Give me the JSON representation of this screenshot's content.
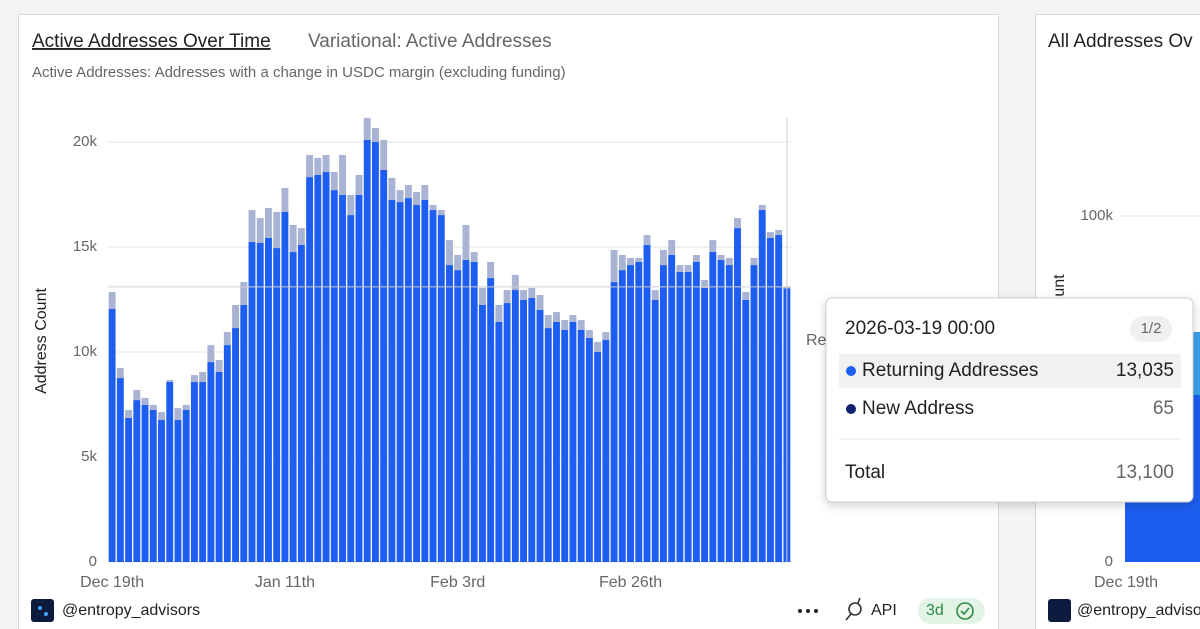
{
  "header": {
    "title": "Active Addresses Over Time",
    "subtitle": "Variational: Active Addresses",
    "description": "Active Addresses: Addresses with a change in USDC margin (excluding funding)"
  },
  "chart_data": {
    "type": "bar",
    "stacked": true,
    "grid": true,
    "ylabel": "Address Count",
    "categories": [
      "Dec 19th",
      null,
      null,
      null,
      null,
      null,
      null,
      null,
      null,
      null,
      null,
      null,
      null,
      null,
      null,
      null,
      null,
      null,
      null,
      null,
      null,
      "Jan 11th",
      null,
      null,
      null,
      null,
      null,
      null,
      null,
      null,
      null,
      null,
      null,
      null,
      null,
      null,
      null,
      null,
      null,
      null,
      null,
      null,
      "Feb 3rd",
      null,
      null,
      null,
      null,
      null,
      null,
      null,
      null,
      null,
      null,
      null,
      null,
      null,
      null,
      null,
      null,
      null,
      null,
      null,
      null,
      "Feb 26th",
      null,
      null,
      null,
      null,
      null,
      null,
      null,
      null,
      null,
      null,
      null,
      null,
      null,
      null,
      null,
      null,
      null,
      null,
      null
    ],
    "series": [
      {
        "name": "Returning Addresses",
        "color": "#1d5ef0",
        "values": [
          12050,
          8760,
          6860,
          7710,
          7480,
          7240,
          6760,
          8570,
          6760,
          7240,
          8570,
          8570,
          9520,
          9050,
          10330,
          11140,
          12240,
          15240,
          15190,
          15430,
          14950,
          16670,
          14760,
          15100,
          18330,
          18430,
          18570,
          17710,
          17480,
          16520,
          17480,
          20100,
          20000,
          18670,
          17240,
          17140,
          17330,
          17000,
          17240,
          16760,
          16520,
          14140,
          13900,
          14380,
          14290,
          12240,
          13520,
          11430,
          12330,
          12950,
          12480,
          12570,
          12000,
          11140,
          11430,
          11050,
          11430,
          11050,
          10670,
          10000,
          10570,
          13330,
          13900,
          14140,
          14290,
          15100,
          12480,
          14140,
          14620,
          13810,
          13810,
          14290,
          13050,
          14760,
          14380,
          14140,
          15900,
          12480,
          14140,
          16760,
          15430,
          15570,
          13035
        ]
      },
      {
        "name": "New Address",
        "color": "#a9b3d4",
        "values": [
          810,
          480,
          380,
          480,
          330,
          240,
          380,
          100,
          570,
          240,
          330,
          480,
          810,
          570,
          620,
          1100,
          1090,
          1520,
          1190,
          1430,
          1720,
          1140,
          1290,
          800,
          1050,
          810,
          810,
          860,
          1900,
          960,
          950,
          1040,
          670,
          1430,
          1050,
          570,
          620,
          620,
          710,
          240,
          240,
          1190,
          720,
          1670,
          470,
          810,
          770,
          810,
          620,
          720,
          470,
          480,
          710,
          620,
          470,
          470,
          330,
          470,
          380,
          480,
          380,
          1530,
          720,
          340,
          190,
          470,
          470,
          720,
          710,
          330,
          330,
          330,
          380,
          570,
          240,
          340,
          480,
          380,
          340,
          240,
          280,
          240,
          65
        ]
      }
    ],
    "ylim": [
      0,
      21000
    ],
    "yticks": [
      0,
      {
        "value": 5000,
        "label": "5k"
      },
      {
        "value": 10000,
        "label": "10k"
      },
      {
        "value": 15000,
        "label": "15k"
      },
      {
        "value": 20000,
        "label": "20k"
      }
    ]
  },
  "tooltip": {
    "title": "2026-03-19 00:00",
    "page": "1/2",
    "rows": [
      {
        "name": "Returning Addresses",
        "value": "13,035"
      },
      {
        "name": "New Address",
        "value": "65"
      }
    ],
    "total_label": "Total",
    "total": "13,100"
  },
  "footer": {
    "author": "@entropy_advisors",
    "api": "API",
    "refresh": "3d"
  },
  "side_panel": {
    "title": "All Addresses Ov",
    "ylabel": "ount",
    "top_tick": "100k",
    "bottom_tick": "0",
    "first_date": "Dec 19th",
    "author": "@entropy_advisors"
  }
}
